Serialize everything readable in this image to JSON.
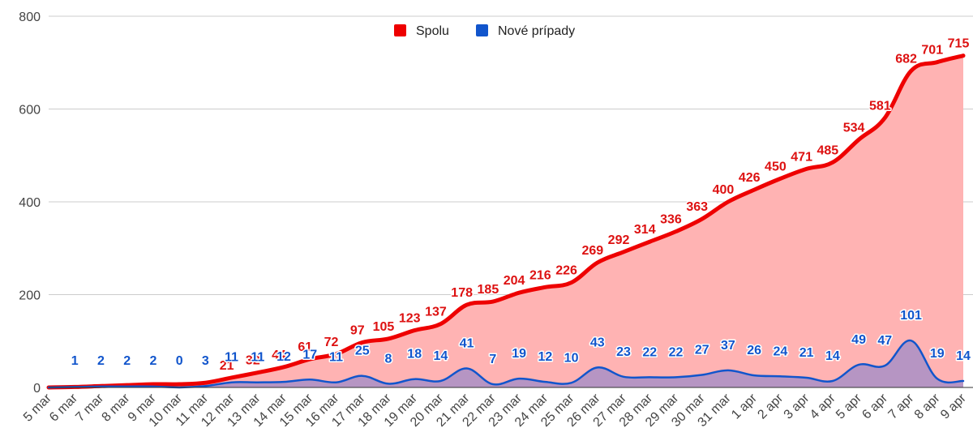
{
  "chart_data": {
    "type": "area",
    "categories": [
      "5 mar",
      "6 mar",
      "7 mar",
      "8 mar",
      "9 mar",
      "10 mar",
      "11 mar",
      "12 mar",
      "13 mar",
      "14 mar",
      "15 mar",
      "16 mar",
      "17 mar",
      "18 mar",
      "19 mar",
      "20 mar",
      "21 mar",
      "22 mar",
      "23 mar",
      "24 mar",
      "25 mar",
      "26 mar",
      "27 mar",
      "28 mar",
      "29 mar",
      "30 mar",
      "31 mar",
      "1 apr",
      "2 apr",
      "3 apr",
      "4 apr",
      "5 apr",
      "6 apr",
      "7 apr",
      "8 apr",
      "9 apr"
    ],
    "series": [
      {
        "name": "Spolu",
        "color": "#ee0000",
        "fill": "#ffb3b3",
        "values": [
          0,
          1,
          3,
          5,
          7,
          7,
          10,
          21,
          32,
          44,
          61,
          72,
          97,
          105,
          123,
          137,
          178,
          185,
          204,
          216,
          226,
          269,
          292,
          314,
          336,
          363,
          400,
          426,
          450,
          471,
          485,
          534,
          581,
          682,
          701,
          715
        ],
        "labels": [
          "",
          "",
          "",
          "",
          "",
          "",
          "",
          "21",
          "32",
          "44",
          "61",
          "72",
          "97",
          "105",
          "123",
          "137",
          "178",
          "185",
          "204",
          "216",
          "226",
          "269",
          "292",
          "314",
          "336",
          "363",
          "400",
          "426",
          "450",
          "471",
          "485",
          "534",
          "581",
          "682",
          "701",
          "715"
        ]
      },
      {
        "name": "Nové prípady",
        "color": "#1155cc",
        "fill": "#a98fc5",
        "values": [
          0,
          1,
          2,
          2,
          2,
          0,
          3,
          11,
          11,
          12,
          17,
          11,
          25,
          8,
          18,
          14,
          41,
          7,
          19,
          12,
          10,
          43,
          23,
          22,
          22,
          27,
          37,
          26,
          24,
          21,
          14,
          49,
          47,
          101,
          19,
          14
        ],
        "labels": [
          "",
          "1",
          "2",
          "2",
          "2",
          "0",
          "3",
          "11",
          "11",
          "12",
          "17",
          "11",
          "25",
          "8",
          "18",
          "14",
          "41",
          "7",
          "19",
          "12",
          "10",
          "43",
          "23",
          "22",
          "22",
          "27",
          "37",
          "26",
          "24",
          "21",
          "14",
          "49",
          "47",
          "101",
          "19",
          "14"
        ]
      }
    ],
    "ylim": [
      0,
      800
    ],
    "yticks": [
      "0",
      "200",
      "400",
      "600",
      "800"
    ],
    "ytick_values": [
      0,
      200,
      400,
      600,
      800
    ],
    "grid": true,
    "legend_position": "top-center",
    "title": "",
    "xlabel": "",
    "ylabel": ""
  }
}
